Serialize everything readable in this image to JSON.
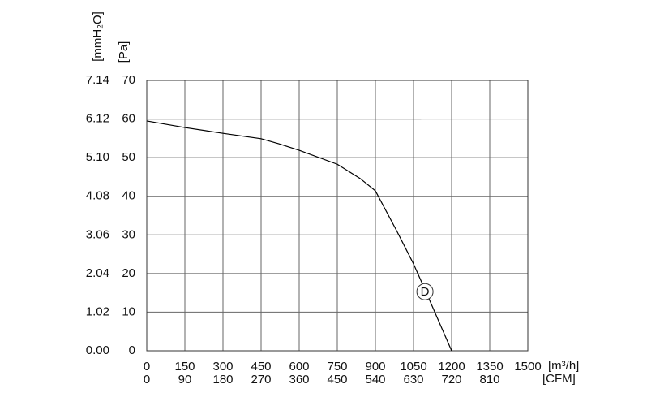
{
  "chart_data": {
    "type": "line",
    "x_label": "[m³/h]",
    "x2_label": "[CFM]",
    "y_label": "[Pa]",
    "y2_label": "[mmH₂O]",
    "xlim": [
      0,
      1500
    ],
    "xticks": [
      0,
      150,
      300,
      450,
      600,
      750,
      900,
      1050,
      1200,
      1350,
      1500
    ],
    "x2lim": [
      0,
      900
    ],
    "x2ticks": [
      0,
      90,
      180,
      270,
      360,
      450,
      540,
      630,
      720,
      810
    ],
    "ylim": [
      0,
      70
    ],
    "yticks": [
      0,
      10,
      20,
      30,
      40,
      50,
      60,
      70
    ],
    "y2lim": [
      0,
      7.14
    ],
    "y2ticks": [
      {
        "value": 0,
        "label": "0.00"
      },
      1.02,
      2.04,
      3.06,
      4.08,
      {
        "value": 5.1,
        "label": "5.10"
      },
      6.12,
      7.14
    ],
    "grid": true,
    "series": [
      {
        "color": "#000000",
        "x": [
          0,
          150,
          300,
          450,
          520,
          600,
          750,
          840,
          900,
          985,
          1050,
          1100,
          1200
        ],
        "values": [
          59.5,
          57.8,
          56.3,
          54.9,
          53.6,
          51.9,
          48.3,
          44.6,
          41.4,
          30.9,
          22.5,
          15.1,
          0
        ]
      },
      {
        "color": "#555555",
        "x": [
          0,
          1080
        ],
        "values": [
          60,
          60
        ]
      }
    ],
    "annotations": [
      {
        "text": "D",
        "x": 1095,
        "y": 15.3
      }
    ]
  }
}
